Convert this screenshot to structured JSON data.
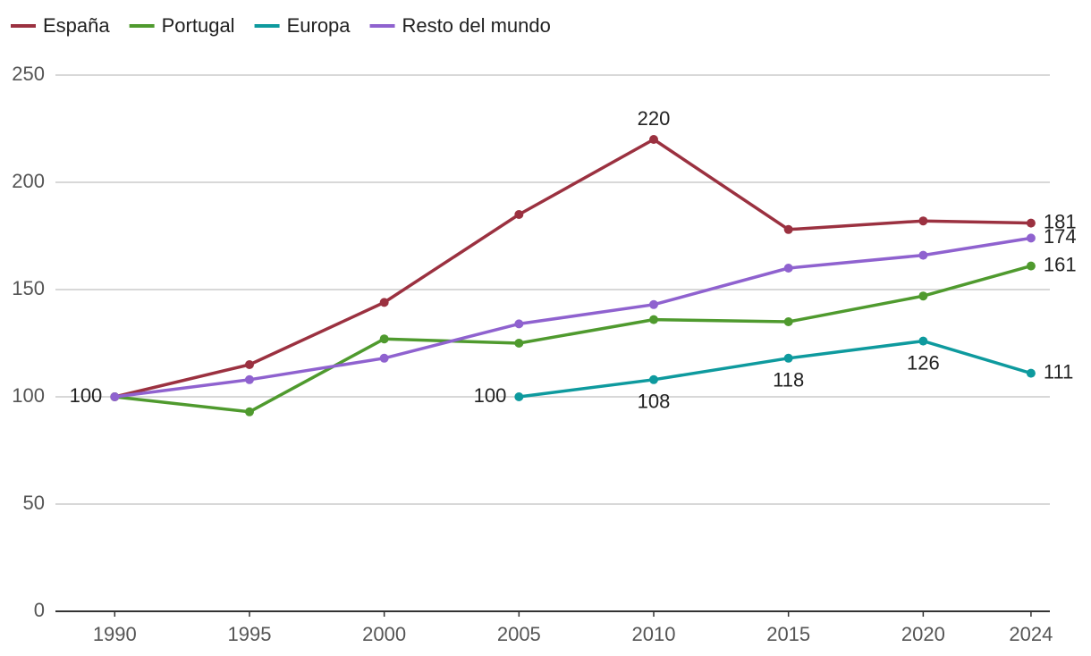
{
  "chart_data": {
    "type": "line",
    "x": [
      1990,
      1995,
      2000,
      2005,
      2010,
      2015,
      2020,
      2024
    ],
    "series": [
      {
        "name": "España",
        "color": "#9b3140",
        "values": [
          100,
          115,
          144,
          185,
          220,
          178,
          182,
          181
        ],
        "labels": [
          "left",
          null,
          null,
          null,
          "above",
          null,
          null,
          "right"
        ]
      },
      {
        "name": "Portugal",
        "color": "#4f9a2e",
        "values": [
          100,
          93,
          127,
          125,
          136,
          135,
          147,
          161
        ],
        "labels": [
          null,
          null,
          null,
          null,
          null,
          null,
          null,
          "right"
        ]
      },
      {
        "name": "Europa",
        "color": "#0e9a9e",
        "values": [
          null,
          null,
          null,
          100,
          108,
          118,
          126,
          111
        ],
        "labels": [
          null,
          null,
          null,
          "left",
          "below",
          "below",
          "below",
          "right"
        ]
      },
      {
        "name": "Resto del mundo",
        "color": "#8f62cf",
        "values": [
          100,
          108,
          118,
          134,
          143,
          160,
          166,
          174
        ],
        "labels": [
          null,
          null,
          null,
          null,
          null,
          null,
          null,
          "right"
        ]
      }
    ],
    "xlim": [
      1987.8,
      2024.7
    ],
    "xticks": [
      1990,
      1995,
      2000,
      2005,
      2010,
      2015,
      2020,
      2024
    ],
    "ylim": [
      0,
      250
    ],
    "yticks": [
      0,
      50,
      100,
      150,
      200,
      250
    ],
    "grid": true,
    "legend": "top-left"
  }
}
